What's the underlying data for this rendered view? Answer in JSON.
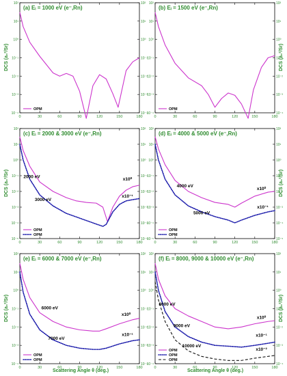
{
  "figure": {
    "ylabel": "DCS (a₀²/Sr)",
    "xlabel": "Scattering Angle θ (deg.)"
  },
  "chart_data": [
    {
      "type": "line",
      "panel": "a",
      "title": "(a) Eᵢ = 1000 eV (e⁻,Rn)",
      "xlim": [
        0,
        180
      ],
      "ylim_log10": [
        -4,
        2
      ],
      "y_scale": "log",
      "x_ticks": [
        "0",
        "30",
        "60",
        "90",
        "120",
        "150",
        "180"
      ],
      "y_ticks": [
        "10⁻⁴",
        "10⁻³",
        "10⁻²",
        "10⁻¹",
        "10⁰",
        "10¹",
        "10²"
      ],
      "series": [
        {
          "name": "OPM",
          "color": "#cc33cc",
          "style": "solid",
          "x": [
            0,
            5,
            15,
            30,
            50,
            60,
            70,
            80,
            90,
            100,
            110,
            120,
            130,
            140,
            148,
            160,
            170,
            180
          ],
          "y": [
            30,
            5,
            0.7,
            0.12,
            0.015,
            0.01,
            0.014,
            0.01,
            0.0015,
            5e-05,
            0.003,
            0.012,
            0.007,
            0.0011,
            0.0002,
            0.02,
            0.06,
            0.1
          ]
        }
      ],
      "annotations": [],
      "legend_position": "bottom-left"
    },
    {
      "type": "line",
      "panel": "b",
      "title": "(b) Eᵢ = 1500 eV (e⁻,Rn)",
      "xlim": [
        0,
        180
      ],
      "ylim_log10": [
        -4,
        2
      ],
      "y_scale": "log",
      "x_ticks": [
        "0",
        "30",
        "60",
        "90",
        "120",
        "150",
        "180"
      ],
      "y_ticks": [
        "10⁻⁴",
        "10⁻³",
        "10⁻²",
        "10⁻¹",
        "10⁰",
        "10¹",
        "10²"
      ],
      "series": [
        {
          "name": "OPM",
          "color": "#cc33cc",
          "style": "solid",
          "x": [
            0,
            5,
            15,
            30,
            50,
            70,
            80,
            90,
            100,
            110,
            120,
            130,
            140,
            148,
            160,
            170,
            180
          ],
          "y": [
            30,
            5,
            0.5,
            0.05,
            0.008,
            0.003,
            0.001,
            0.0002,
            0.0006,
            0.0012,
            0.0009,
            0.0003,
            5e-05,
            0.0018,
            0.03,
            0.1,
            0.13
          ]
        }
      ],
      "annotations": [],
      "legend_position": "bottom-left"
    },
    {
      "type": "line",
      "panel": "c",
      "title": "(c) Eᵢ = 2000 & 3000 eV (e⁻,Rn)",
      "xlim": [
        0,
        180
      ],
      "ylim_log10": [
        -5,
        2
      ],
      "y_scale": "log",
      "x_ticks": [
        "0",
        "30",
        "60",
        "90",
        "120",
        "150",
        "180"
      ],
      "y_ticks": [
        "10⁻⁵",
        "10⁻⁴",
        "10⁻³",
        "10⁻²",
        "10⁻¹",
        "10⁰",
        "10¹",
        "10²"
      ],
      "series": [
        {
          "name": "OPM",
          "color": "#cc33cc",
          "style": "solid",
          "x": [
            0,
            5,
            15,
            30,
            50,
            70,
            85,
            100,
            115,
            125,
            132,
            140,
            150,
            160,
            170,
            180
          ],
          "y": [
            30,
            4,
            0.4,
            0.04,
            0.01,
            0.004,
            0.0025,
            0.002,
            0.0018,
            0.001,
            0.00012,
            0.001,
            0.005,
            0.012,
            0.02,
            0.025
          ]
        },
        {
          "name": "OPM",
          "color": "#1a1aaa",
          "style": "dotted",
          "x": [
            0,
            5,
            15,
            30,
            50,
            70,
            90,
            110,
            125,
            130,
            140,
            150,
            160,
            170,
            180
          ],
          "y": [
            10,
            1,
            0.06,
            0.006,
            0.0012,
            0.0004,
            0.0002,
            0.0001,
            6e-05,
            8e-05,
            0.0005,
            0.0015,
            0.0025,
            0.003,
            0.0035
          ]
        }
      ],
      "annotations": [
        {
          "text": "2000 eV",
          "x": 18,
          "y": 0.07
        },
        {
          "text": "3000 eV",
          "x": 35,
          "y": 0.0025
        },
        {
          "text": "x10⁰",
          "x": 162,
          "y": 0.05
        },
        {
          "text": "x10⁻¹",
          "x": 162,
          "y": 0.004
        }
      ],
      "legend_position": "bottom-left"
    },
    {
      "type": "line",
      "panel": "d",
      "title": "(d) Eᵢ = 4000 & 5000 eV (e⁻,Rn)",
      "xlim": [
        0,
        180
      ],
      "ylim_log10": [
        -5,
        2
      ],
      "y_scale": "log",
      "x_ticks": [
        "0",
        "30",
        "60",
        "90",
        "120",
        "150",
        "180"
      ],
      "y_ticks": [
        "10⁻⁵",
        "10⁻⁴",
        "10⁻³",
        "10⁻²",
        "10⁻¹",
        "10⁰",
        "10¹",
        "10²"
      ],
      "series": [
        {
          "name": "OPM",
          "color": "#cc33cc",
          "style": "solid",
          "x": [
            0,
            5,
            15,
            30,
            50,
            70,
            90,
            110,
            120,
            130,
            150,
            170,
            180
          ],
          "y": [
            30,
            5,
            0.5,
            0.05,
            0.01,
            0.004,
            0.002,
            0.0015,
            0.001,
            0.0018,
            0.005,
            0.009,
            0.01
          ]
        },
        {
          "name": "OPM",
          "color": "#1a1aaa",
          "style": "dotted",
          "x": [
            0,
            5,
            15,
            30,
            50,
            70,
            90,
            110,
            120,
            130,
            150,
            170,
            180
          ],
          "y": [
            10,
            1,
            0.06,
            0.006,
            0.0012,
            0.0005,
            0.00025,
            0.00015,
            0.0001,
            0.00015,
            0.0003,
            0.0005,
            0.0006
          ]
        }
      ],
      "annotations": [
        {
          "text": "4000 eV",
          "x": 45,
          "y": 0.018
        },
        {
          "text": "5000 eV",
          "x": 70,
          "y": 0.00035
        },
        {
          "text": "x10⁰",
          "x": 160,
          "y": 0.012
        },
        {
          "text": "x10⁻¹",
          "x": 162,
          "y": 0.0008
        }
      ],
      "legend_position": "bottom-left"
    },
    {
      "type": "line",
      "panel": "e",
      "title": "(e) Eᵢ = 6000 & 7000 eV (e⁻,Rn)",
      "xlim": [
        0,
        180
      ],
      "ylim_log10": [
        -4,
        2
      ],
      "y_scale": "log",
      "x_ticks": [
        "0",
        "30",
        "60",
        "90",
        "120",
        "150",
        "180"
      ],
      "y_ticks": [
        "10⁻⁴",
        "10⁻³",
        "10⁻²",
        "10⁻¹",
        "10⁰",
        "10¹",
        "10²"
      ],
      "series": [
        {
          "name": "OPM",
          "color": "#cc33cc",
          "style": "solid",
          "x": [
            0,
            5,
            15,
            30,
            50,
            70,
            90,
            110,
            120,
            130,
            150,
            170,
            180
          ],
          "y": [
            30,
            4,
            0.4,
            0.06,
            0.02,
            0.01,
            0.007,
            0.006,
            0.006,
            0.008,
            0.015,
            0.025,
            0.03
          ]
        },
        {
          "name": "OPM",
          "color": "#1a1aaa",
          "style": "dotted",
          "x": [
            0,
            5,
            15,
            30,
            50,
            70,
            90,
            110,
            120,
            130,
            150,
            170,
            180
          ],
          "y": [
            10,
            0.8,
            0.05,
            0.007,
            0.002,
            0.001,
            0.0007,
            0.0006,
            0.0006,
            0.0007,
            0.0012,
            0.0018,
            0.002
          ]
        }
      ],
      "annotations": [
        {
          "text": "6000 eV",
          "x": 45,
          "y": 0.09
        },
        {
          "text": "7000 eV",
          "x": 55,
          "y": 0.002
        },
        {
          "text": "x10⁰",
          "x": 160,
          "y": 0.04
        },
        {
          "text": "x10⁻¹",
          "x": 162,
          "y": 0.0032
        }
      ],
      "legend_position": "bottom-left"
    },
    {
      "type": "line",
      "panel": "f",
      "title": "(f) Eᵢ = 8000, 9000 & 10000 eV (e⁻,Rn)",
      "xlim": [
        0,
        180
      ],
      "ylim_log10": [
        -4,
        2
      ],
      "y_scale": "log",
      "x_ticks": [
        "0",
        "30",
        "60",
        "90",
        "120",
        "150",
        "180"
      ],
      "y_ticks": [
        "10⁻⁴",
        "10⁻³",
        "10⁻²",
        "10⁻¹",
        "10⁰",
        "10¹",
        "10²"
      ],
      "series": [
        {
          "name": "OPM",
          "color": "#cc33cc",
          "style": "solid",
          "x": [
            0,
            5,
            15,
            30,
            50,
            70,
            90,
            110,
            130,
            150,
            170,
            180
          ],
          "y": [
            30,
            4,
            0.5,
            0.1,
            0.04,
            0.02,
            0.01,
            0.008,
            0.01,
            0.015,
            0.02,
            0.022
          ]
        },
        {
          "name": "OPM",
          "color": "#1a1aaa",
          "style": "dotted",
          "x": [
            0,
            5,
            15,
            30,
            50,
            70,
            90,
            110,
            130,
            150,
            170,
            180
          ],
          "y": [
            10,
            1,
            0.07,
            0.01,
            0.003,
            0.0015,
            0.001,
            0.0009,
            0.0008,
            0.001,
            0.0013,
            0.0015
          ]
        },
        {
          "name": "OPM",
          "color": "#111111",
          "style": "dashed",
          "x": [
            0,
            5,
            15,
            30,
            50,
            70,
            90,
            110,
            130,
            150,
            170,
            180
          ],
          "y": [
            3,
            0.3,
            0.02,
            0.002,
            0.0005,
            0.00025,
            0.00018,
            0.00015,
            0.00015,
            0.0002,
            0.00025,
            0.00028
          ]
        }
      ],
      "annotations": [
        {
          "text": "8000 eV",
          "x": 18,
          "y": 0.15
        },
        {
          "text": "9000 eV",
          "x": 40,
          "y": 0.01
        },
        {
          "text": "10000 eV",
          "x": 55,
          "y": 0.0008
        },
        {
          "text": "x10⁰",
          "x": 160,
          "y": 0.028
        },
        {
          "text": "x10⁻¹",
          "x": 160,
          "y": 0.003
        },
        {
          "text": "x10⁻²",
          "x": 160,
          "y": 0.0005
        }
      ],
      "legend_position": "bottom-left"
    }
  ]
}
